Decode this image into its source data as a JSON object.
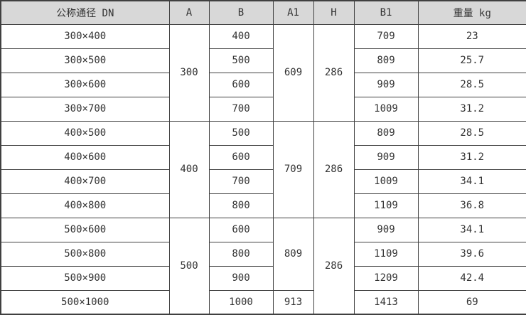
{
  "colors": {
    "header_bg": "#d8d8d8",
    "border": "#404040",
    "text": "#333333",
    "row_bg": "#ffffff"
  },
  "chart_data": {
    "type": "table",
    "title": "",
    "columns": [
      "公称通径 DN",
      "A",
      "B",
      "A1",
      "H",
      "B1",
      "重量 kg"
    ],
    "rows": [
      [
        "300×400",
        "300",
        "400",
        "609",
        "286",
        "709",
        "23"
      ],
      [
        "300×500",
        "300",
        "500",
        "609",
        "286",
        "809",
        "25.7"
      ],
      [
        "300×600",
        "300",
        "600",
        "609",
        "286",
        "909",
        "28.5"
      ],
      [
        "300×700",
        "300",
        "700",
        "609",
        "286",
        "1009",
        "31.2"
      ],
      [
        "400×500",
        "400",
        "500",
        "709",
        "286",
        "809",
        "28.5"
      ],
      [
        "400×600",
        "400",
        "600",
        "709",
        "286",
        "909",
        "31.2"
      ],
      [
        "400×700",
        "400",
        "700",
        "709",
        "286",
        "1009",
        "34.1"
      ],
      [
        "400×800",
        "400",
        "800",
        "709",
        "286",
        "1109",
        "36.8"
      ],
      [
        "500×600",
        "500",
        "600",
        "809",
        "286",
        "909",
        "34.1"
      ],
      [
        "500×800",
        "500",
        "800",
        "809",
        "286",
        "1109",
        "39.6"
      ],
      [
        "500×900",
        "500",
        "900",
        "809",
        "286",
        "1209",
        "42.4"
      ],
      [
        "500×1000",
        "500",
        "1000",
        "913",
        "286",
        "1413",
        "69"
      ]
    ],
    "layout": {
      "grid": true,
      "merged_columns": [
        "A",
        "A1",
        "H"
      ]
    }
  },
  "table": {
    "header": [
      "公称通径 DN",
      "A",
      "B",
      "A1",
      "H",
      "B1",
      "重量 kg"
    ],
    "body": [
      [
        {
          "c": "dn",
          "v": "300×400"
        },
        {
          "c": "a",
          "v": "300",
          "rs": 4
        },
        {
          "c": "b",
          "v": "400"
        },
        {
          "c": "a1",
          "v": "609",
          "rs": 4
        },
        {
          "c": "h",
          "v": "286",
          "rs": 4
        },
        {
          "c": "b1",
          "v": "709"
        },
        {
          "c": "weight",
          "v": "23"
        }
      ],
      [
        {
          "c": "dn",
          "v": "300×500"
        },
        {
          "c": "b",
          "v": "500"
        },
        {
          "c": "b1",
          "v": "809"
        },
        {
          "c": "weight",
          "v": "25.7"
        }
      ],
      [
        {
          "c": "dn",
          "v": "300×600"
        },
        {
          "c": "b",
          "v": "600"
        },
        {
          "c": "b1",
          "v": "909"
        },
        {
          "c": "weight",
          "v": "28.5"
        }
      ],
      [
        {
          "c": "dn",
          "v": "300×700"
        },
        {
          "c": "b",
          "v": "700"
        },
        {
          "c": "b1",
          "v": "1009"
        },
        {
          "c": "weight",
          "v": "31.2"
        }
      ],
      [
        {
          "c": "dn",
          "v": "400×500"
        },
        {
          "c": "a",
          "v": "400",
          "rs": 4
        },
        {
          "c": "b",
          "v": "500"
        },
        {
          "c": "a1",
          "v": "709",
          "rs": 4
        },
        {
          "c": "h",
          "v": "286",
          "rs": 4
        },
        {
          "c": "b1",
          "v": "809"
        },
        {
          "c": "weight",
          "v": "28.5"
        }
      ],
      [
        {
          "c": "dn",
          "v": "400×600"
        },
        {
          "c": "b",
          "v": "600"
        },
        {
          "c": "b1",
          "v": "909"
        },
        {
          "c": "weight",
          "v": "31.2"
        }
      ],
      [
        {
          "c": "dn",
          "v": "400×700"
        },
        {
          "c": "b",
          "v": "700"
        },
        {
          "c": "b1",
          "v": "1009"
        },
        {
          "c": "weight",
          "v": "34.1"
        }
      ],
      [
        {
          "c": "dn",
          "v": "400×800"
        },
        {
          "c": "b",
          "v": "800"
        },
        {
          "c": "b1",
          "v": "1109"
        },
        {
          "c": "weight",
          "v": "36.8"
        }
      ],
      [
        {
          "c": "dn",
          "v": "500×600"
        },
        {
          "c": "a",
          "v": "500",
          "rs": 4
        },
        {
          "c": "b",
          "v": "600"
        },
        {
          "c": "a1",
          "v": "809",
          "rs": 3
        },
        {
          "c": "h",
          "v": "286",
          "rs": 4
        },
        {
          "c": "b1",
          "v": "909"
        },
        {
          "c": "weight",
          "v": "34.1"
        }
      ],
      [
        {
          "c": "dn",
          "v": "500×800"
        },
        {
          "c": "b",
          "v": "800"
        },
        {
          "c": "b1",
          "v": "1109"
        },
        {
          "c": "weight",
          "v": "39.6"
        }
      ],
      [
        {
          "c": "dn",
          "v": "500×900"
        },
        {
          "c": "b",
          "v": "900"
        },
        {
          "c": "b1",
          "v": "1209"
        },
        {
          "c": "weight",
          "v": "42.4"
        }
      ],
      [
        {
          "c": "dn",
          "v": "500×1000"
        },
        {
          "c": "b",
          "v": "1000"
        },
        {
          "c": "a1",
          "v": "913"
        },
        {
          "c": "b1",
          "v": "1413"
        },
        {
          "c": "weight",
          "v": "69"
        }
      ]
    ]
  }
}
